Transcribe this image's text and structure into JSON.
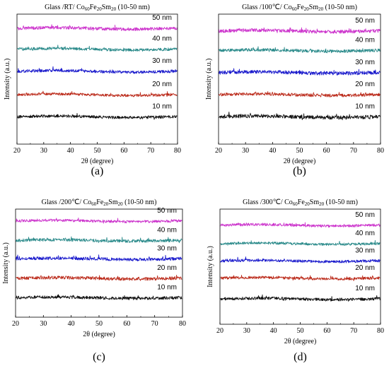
{
  "chart_data": [
    {
      "type": "line",
      "panel_label": "(a)",
      "title": {
        "pre": "Glass /RT/ Co",
        "s1": "60",
        "m1": "Fe",
        "s2": "20",
        "m2": "Sm",
        "s3": "20",
        "post": " (10-50 nm)"
      },
      "xlabel": "2θ (degree)",
      "ylabel": "Intensity (a.u.)",
      "xlim": [
        20,
        80
      ],
      "x_ticks": [
        "20",
        "30",
        "40",
        "50",
        "60",
        "70",
        "80"
      ],
      "series": [
        {
          "name": "50 nm",
          "color": "#cc33cc",
          "level": 0.89,
          "noise": 0.012
        },
        {
          "name": "40 nm",
          "color": "#2a8a8a",
          "level": 0.73,
          "noise": 0.011
        },
        {
          "name": "30 nm",
          "color": "#1a1acc",
          "level": 0.56,
          "noise": 0.011
        },
        {
          "name": "20 nm",
          "color": "#bb2a1a",
          "level": 0.38,
          "noise": 0.01
        },
        {
          "name": "10 nm",
          "color": "#111111",
          "level": 0.21,
          "noise": 0.011
        }
      ]
    },
    {
      "type": "line",
      "panel_label": "(b)",
      "title": {
        "pre": "Glass /100℃/ Co",
        "s1": "60",
        "m1": "Fe",
        "s2": "20",
        "m2": "Sm",
        "s3": "20",
        "post": " (10-50 nm)"
      },
      "xlabel": "2θ (degree)",
      "ylabel": "Intensity (a.u.)",
      "xlim": [
        20,
        80
      ],
      "x_ticks": [
        "20",
        "30",
        "40",
        "50",
        "60",
        "70",
        "80"
      ],
      "series": [
        {
          "name": "50 nm",
          "color": "#cc33cc",
          "level": 0.87,
          "noise": 0.013
        },
        {
          "name": "40 nm",
          "color": "#2a8a8a",
          "level": 0.72,
          "noise": 0.012
        },
        {
          "name": "30 nm",
          "color": "#1a1acc",
          "level": 0.55,
          "noise": 0.014
        },
        {
          "name": "20 nm",
          "color": "#bb2a1a",
          "level": 0.38,
          "noise": 0.012
        },
        {
          "name": "10 nm",
          "color": "#111111",
          "level": 0.21,
          "noise": 0.014
        }
      ]
    },
    {
      "type": "line",
      "panel_label": "(c)",
      "title": {
        "pre": "Glass /200℃/ Co",
        "s1": "60",
        "m1": "Fe",
        "s2": "20",
        "m2": "Sm",
        "s3": "20",
        "post": " (10-50 nm)"
      },
      "xlabel": "2θ (degree)",
      "ylabel": "Intensity (a.u.)",
      "xlim": [
        20,
        80
      ],
      "x_ticks": [
        "20",
        "30",
        "40",
        "50",
        "60",
        "70",
        "80"
      ],
      "series": [
        {
          "name": "50 nm",
          "color": "#cc33cc",
          "level": 0.89,
          "noise": 0.012
        },
        {
          "name": "40 nm",
          "color": "#2a8a8a",
          "level": 0.71,
          "noise": 0.014
        },
        {
          "name": "30 nm",
          "color": "#1a1acc",
          "level": 0.54,
          "noise": 0.014
        },
        {
          "name": "20 nm",
          "color": "#bb2a1a",
          "level": 0.36,
          "noise": 0.015
        },
        {
          "name": "10 nm",
          "color": "#111111",
          "level": 0.18,
          "noise": 0.014
        }
      ]
    },
    {
      "type": "line",
      "panel_label": "(d)",
      "title": {
        "pre": "Glass /300℃/ Co",
        "s1": "60",
        "m1": "Fe",
        "s2": "20",
        "m2": "Sm",
        "s3": "20",
        "post": " (10-50 nm)"
      },
      "xlabel": "2θ (degree)",
      "ylabel": "Intensity (a.u.)",
      "xlim": [
        20,
        80
      ],
      "x_ticks": [
        "20",
        "30",
        "40",
        "50",
        "60",
        "70",
        "80"
      ],
      "series": [
        {
          "name": "50 nm",
          "color": "#cc33cc",
          "level": 0.86,
          "noise": 0.012
        },
        {
          "name": "40 nm",
          "color": "#2a8a8a",
          "level": 0.7,
          "noise": 0.011
        },
        {
          "name": "30 nm",
          "color": "#1a1acc",
          "level": 0.55,
          "noise": 0.012
        },
        {
          "name": "20 nm",
          "color": "#bb2a1a",
          "level": 0.4,
          "noise": 0.012
        },
        {
          "name": "10 nm",
          "color": "#111111",
          "level": 0.22,
          "noise": 0.013
        }
      ]
    }
  ]
}
